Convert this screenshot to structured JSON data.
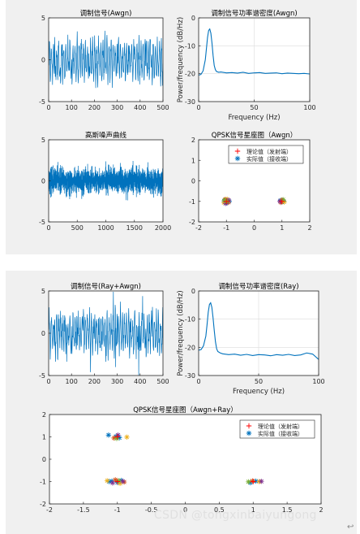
{
  "watermark": "CSDN @tongxinbaiyungong",
  "corner_glyph": "↩",
  "chart_data": [
    {
      "id": "p1",
      "type": "line",
      "title": "调制信号(Awgn)",
      "xlabel": "",
      "ylabel": "",
      "xlim": [
        0,
        500
      ],
      "ylim": [
        -5,
        5
      ],
      "xticks": [
        0,
        100,
        200,
        300,
        400,
        500
      ],
      "yticks": [
        -5,
        0,
        5
      ],
      "grid": false,
      "color": "#0072bd",
      "signal": {
        "n": 500,
        "kind": "modulated",
        "amplitude": 1.9,
        "noise": 0.7,
        "seed": 11
      }
    },
    {
      "id": "p2",
      "type": "line",
      "title": "调制信号功率谱密度(Awgn)",
      "xlabel": "Frequency (Hz)",
      "ylabel": "Power/frequency (dB/Hz)",
      "xlim": [
        0,
        100
      ],
      "ylim": [
        -30,
        0
      ],
      "xticks": [
        0,
        50,
        100
      ],
      "yticks": [
        -30,
        -20,
        -10,
        0
      ],
      "grid": true,
      "color": "#0072bd",
      "x": [
        0,
        2,
        4,
        6,
        7,
        8,
        9,
        10,
        11,
        12,
        13,
        14,
        15,
        16,
        18,
        20,
        25,
        30,
        35,
        40,
        45,
        50,
        55,
        60,
        65,
        70,
        75,
        80,
        85,
        90,
        95,
        100
      ],
      "y": [
        -20.5,
        -20.3,
        -19,
        -15,
        -11,
        -7,
        -4.5,
        -4,
        -5.5,
        -9,
        -13.5,
        -17,
        -18.5,
        -19.2,
        -19.5,
        -19.4,
        -19.7,
        -19.6,
        -19.8,
        -19.5,
        -19.9,
        -19.7,
        -19.6,
        -19.9,
        -19.8,
        -19.7,
        -20,
        -19.8,
        -19.9,
        -20,
        -19.9,
        -20.1
      ]
    },
    {
      "id": "p3",
      "type": "line",
      "title": "高斯噪声曲线",
      "xlabel": "",
      "ylabel": "",
      "xlim": [
        0,
        2000
      ],
      "ylim": [
        -5,
        5
      ],
      "xticks": [
        0,
        500,
        1000,
        1500,
        2000
      ],
      "yticks": [
        -5,
        0,
        5
      ],
      "grid": false,
      "color": "#0072bd",
      "signal": {
        "n": 2000,
        "kind": "noise",
        "amplitude": 0.75,
        "seed": 23
      }
    },
    {
      "id": "p4",
      "type": "scatter",
      "title": "QPSK信号星座图（Awgn）",
      "xlabel": "",
      "ylabel": "",
      "xlim": [
        -2,
        2
      ],
      "ylim": [
        -2,
        2
      ],
      "xticks": [
        -2,
        -1,
        0,
        1,
        2
      ],
      "yticks": [
        -2,
        -1,
        0,
        1,
        2
      ],
      "grid": false,
      "legend": {
        "position": "top-right",
        "entries": [
          "理论值（发射端）",
          "实际值（接收端）"
        ]
      },
      "series": [
        {
          "name": "理论值（发射端）",
          "marker": "+",
          "color": "#ff0000",
          "points": [
            [
              -1,
              -1
            ],
            [
              1,
              -1
            ]
          ]
        },
        {
          "name": "实际值（接收端）",
          "marker": "*",
          "color": "#0072bd",
          "points": [
            [
              -1.02,
              -0.95
            ],
            [
              -0.95,
              -1.03
            ],
            [
              -1.05,
              -1.02
            ],
            [
              -0.98,
              -0.92
            ],
            [
              -1.08,
              -0.98
            ],
            [
              -0.9,
              -1.0
            ],
            [
              -1.0,
              -1.07
            ],
            [
              -0.96,
              -0.98
            ],
            [
              1.02,
              -0.97
            ],
            [
              0.98,
              -1.02
            ],
            [
              1.06,
              -1.0
            ],
            [
              0.95,
              -0.96
            ]
          ]
        },
        {
          "name": "",
          "marker": "*",
          "color": "#d95319",
          "points": [
            [
              -1.04,
              -0.9
            ],
            [
              -0.93,
              -1.05
            ],
            [
              1.0,
              -0.94
            ],
            [
              0.96,
              -1.05
            ]
          ]
        },
        {
          "name": "",
          "marker": "*",
          "color": "#edb120",
          "points": [
            [
              -1.09,
              -1.06
            ],
            [
              -0.97,
              -0.9
            ],
            [
              1.08,
              -1.03
            ]
          ]
        },
        {
          "name": "",
          "marker": "*",
          "color": "#7e2f8e",
          "points": [
            [
              -0.92,
              -0.94
            ],
            [
              -1.03,
              -1.1
            ],
            [
              0.93,
              -1.0
            ]
          ]
        },
        {
          "name": "",
          "marker": "*",
          "color": "#77ac30",
          "points": [
            [
              -0.99,
              -1.0
            ],
            [
              -1.06,
              -0.94
            ],
            [
              1.04,
              -0.92
            ]
          ]
        }
      ]
    },
    {
      "id": "p5",
      "type": "line",
      "title": "调制信号(Ray+Awgn)",
      "xlabel": "",
      "ylabel": "",
      "xlim": [
        0,
        500
      ],
      "ylim": [
        -5,
        5
      ],
      "xticks": [
        0,
        100,
        200,
        300,
        400,
        500
      ],
      "yticks": [
        -5,
        0,
        5
      ],
      "grid": false,
      "color": "#0072bd",
      "signal": {
        "n": 500,
        "kind": "modulated",
        "amplitude": 1.7,
        "noise": 0.8,
        "seed": 37,
        "spikes": [
          [
            182,
            -4.6
          ],
          [
            282,
            4.9
          ],
          [
            292,
            -4.0
          ],
          [
            393,
            -5.0
          ],
          [
            410,
            4.4
          ]
        ]
      }
    },
    {
      "id": "p6",
      "type": "line",
      "title": "调制信号功率谱密度(Ray)",
      "xlabel": "Frequency (Hz)",
      "ylabel": "Power/frequency (dB/Hz)",
      "xlim": [
        0,
        100
      ],
      "ylim": [
        -30,
        0
      ],
      "xticks": [
        0,
        50,
        100
      ],
      "yticks": [
        -30,
        -20,
        -10,
        0
      ],
      "grid": true,
      "color": "#0072bd",
      "x": [
        0,
        2,
        4,
        6,
        7,
        8,
        9,
        10,
        11,
        12,
        13,
        14,
        15,
        16,
        18,
        20,
        25,
        30,
        35,
        40,
        45,
        50,
        55,
        60,
        65,
        70,
        75,
        80,
        85,
        90,
        95,
        100
      ],
      "y": [
        -21,
        -20.8,
        -19.5,
        -16,
        -12,
        -7.5,
        -4.8,
        -4.2,
        -5.8,
        -9.5,
        -14,
        -18,
        -20.5,
        -21.5,
        -22,
        -22.3,
        -22.6,
        -22.4,
        -22.8,
        -22.5,
        -22.9,
        -22.6,
        -22.7,
        -23,
        -22.6,
        -22.8,
        -22.5,
        -22.9,
        -22.7,
        -22,
        -22.4,
        -24.3
      ]
    },
    {
      "id": "p7",
      "type": "scatter",
      "title": "QPSK信号星座图（Awgn+Ray）",
      "xlabel": "",
      "ylabel": "",
      "xlim": [
        -2,
        2
      ],
      "ylim": [
        -2,
        2
      ],
      "xticks": [
        -2,
        -1.5,
        -1,
        -0.5,
        0,
        0.5,
        1,
        1.5,
        2
      ],
      "yticks": [
        -2,
        -1,
        0,
        1,
        2
      ],
      "grid": false,
      "legend": {
        "position": "top-right",
        "entries": [
          "理论值（发射端）",
          "实际值（接收端）"
        ]
      },
      "series": [
        {
          "name": "理论值（发射端）",
          "marker": "+",
          "color": "#ff0000",
          "points": [
            [
              -1,
              1
            ],
            [
              -1,
              -1
            ],
            [
              1,
              -1
            ]
          ]
        },
        {
          "name": "实际值（接收端）",
          "marker": "*",
          "color": "#0072bd",
          "points": [
            [
              -1.13,
              1.08
            ],
            [
              -1.02,
              1.02
            ],
            [
              -0.97,
              0.96
            ],
            [
              -1.08,
              -0.98
            ],
            [
              -1.0,
              -1.04
            ],
            [
              -0.94,
              -0.95
            ],
            [
              -1.12,
              -1.0
            ],
            [
              0.96,
              -1.05
            ],
            [
              1.04,
              -0.98
            ]
          ]
        },
        {
          "name": "",
          "marker": "*",
          "color": "#d95319",
          "points": [
            [
              -1.05,
              0.95
            ],
            [
              -1.03,
              -0.92
            ],
            [
              -0.9,
              -1.02
            ],
            [
              0.99,
              -0.97
            ]
          ]
        },
        {
          "name": "",
          "marker": "*",
          "color": "#edb120",
          "points": [
            [
              -0.86,
              0.99
            ],
            [
              -0.96,
              -1.08
            ],
            [
              -1.15,
              -0.96
            ],
            [
              1.09,
              -1.0
            ]
          ]
        },
        {
          "name": "",
          "marker": "*",
          "color": "#7e2f8e",
          "points": [
            [
              -0.99,
              1.08
            ],
            [
              -1.07,
              -1.06
            ],
            [
              -0.92,
              -0.99
            ],
            [
              1.12,
              -0.99
            ]
          ]
        },
        {
          "name": "",
          "marker": "*",
          "color": "#77ac30",
          "points": [
            [
              -1.01,
              0.93
            ],
            [
              -0.98,
              -0.96
            ],
            [
              0.93,
              -1.01
            ]
          ]
        }
      ]
    }
  ]
}
